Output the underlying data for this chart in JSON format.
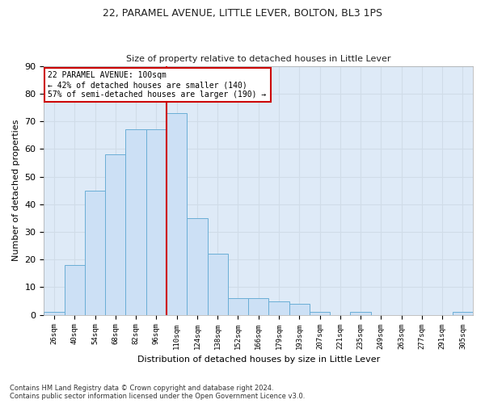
{
  "title": "22, PARAMEL AVENUE, LITTLE LEVER, BOLTON, BL3 1PS",
  "subtitle": "Size of property relative to detached houses in Little Lever",
  "xlabel": "Distribution of detached houses by size in Little Lever",
  "ylabel": "Number of detached properties",
  "bar_color": "#cce0f5",
  "bar_edge_color": "#6aaed6",
  "categories": [
    "26sqm",
    "40sqm",
    "54sqm",
    "68sqm",
    "82sqm",
    "96sqm",
    "110sqm",
    "124sqm",
    "138sqm",
    "152sqm",
    "166sqm",
    "179sqm",
    "193sqm",
    "207sqm",
    "221sqm",
    "235sqm",
    "249sqm",
    "263sqm",
    "277sqm",
    "291sqm",
    "305sqm"
  ],
  "values": [
    1,
    18,
    45,
    58,
    67,
    67,
    73,
    35,
    22,
    6,
    6,
    5,
    4,
    1,
    0,
    1,
    0,
    0,
    0,
    0,
    1
  ],
  "annotation_text": "22 PARAMEL AVENUE: 100sqm\n← 42% of detached houses are smaller (140)\n57% of semi-detached houses are larger (190) →",
  "annotation_box_color": "#ffffff",
  "annotation_box_edge_color": "#cc0000",
  "vline_color": "#cc0000",
  "grid_color": "#d0dce8",
  "background_color": "#deeaf7",
  "footnote": "Contains HM Land Registry data © Crown copyright and database right 2024.\nContains public sector information licensed under the Open Government Licence v3.0.",
  "ylim": [
    0,
    90
  ],
  "yticks": [
    0,
    10,
    20,
    30,
    40,
    50,
    60,
    70,
    80,
    90
  ],
  "vline_x": 5.5,
  "figwidth": 6.0,
  "figheight": 5.0,
  "dpi": 100
}
